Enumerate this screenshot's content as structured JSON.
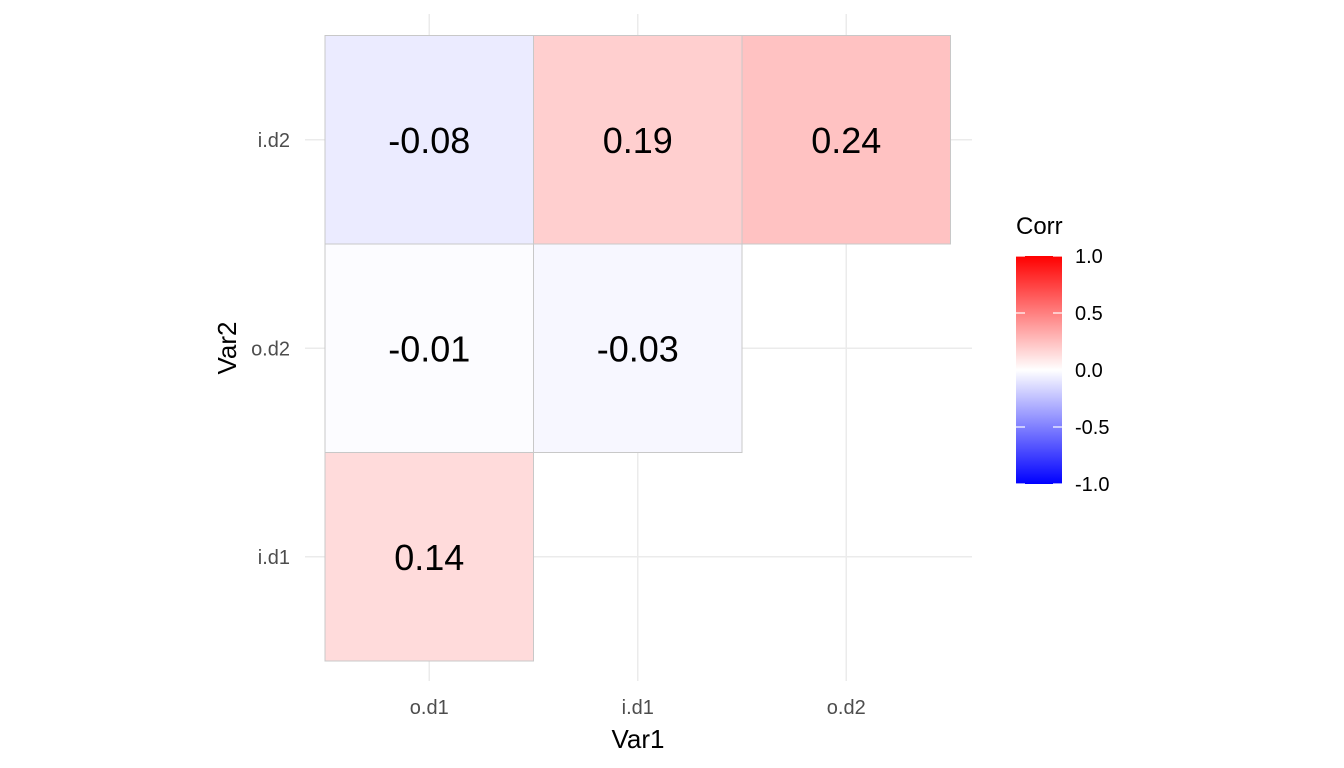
{
  "chart_data": {
    "type": "heatmap",
    "xlabel": "Var1",
    "ylabel": "Var2",
    "x_categories": [
      "o.d1",
      "i.d1",
      "o.d2"
    ],
    "y_categories": [
      "i.d1",
      "o.d2",
      "i.d2"
    ],
    "cells": [
      {
        "x": "o.d1",
        "y": "i.d1",
        "value": 0.14,
        "label": "0.14"
      },
      {
        "x": "o.d1",
        "y": "o.d2",
        "value": -0.01,
        "label": "-0.01"
      },
      {
        "x": "i.d1",
        "y": "o.d2",
        "value": -0.03,
        "label": "-0.03"
      },
      {
        "x": "o.d1",
        "y": "i.d2",
        "value": -0.08,
        "label": "-0.08"
      },
      {
        "x": "i.d1",
        "y": "i.d2",
        "value": 0.19,
        "label": "0.19"
      },
      {
        "x": "o.d2",
        "y": "i.d2",
        "value": 0.24,
        "label": "0.24"
      }
    ],
    "legend": {
      "title": "Corr",
      "position": "right",
      "range": [
        -1.0,
        1.0
      ],
      "ticks": [
        1.0,
        0.5,
        0.0,
        -0.5,
        -1.0
      ],
      "tick_labels": [
        "1.0",
        "0.5",
        "0.0",
        "-0.5",
        "-1.0"
      ],
      "colors": {
        "low": "#0000ff",
        "mid": "#ffffff",
        "high": "#ff0000"
      }
    },
    "grid": true
  }
}
